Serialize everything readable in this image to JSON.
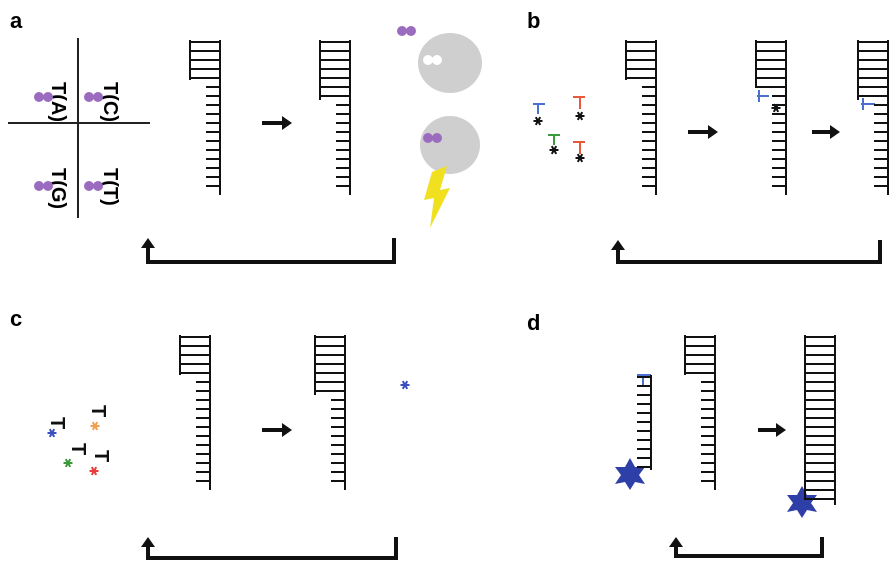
{
  "panels": [
    {
      "label": "a",
      "quadrants": [
        "T(A)",
        "T(C)",
        "T(G)",
        "T(T)"
      ]
    },
    {
      "label": "b"
    },
    {
      "label": "c",
      "nucleotides": [
        "T",
        "T",
        "T",
        "T"
      ]
    },
    {
      "label": "d"
    }
  ]
}
